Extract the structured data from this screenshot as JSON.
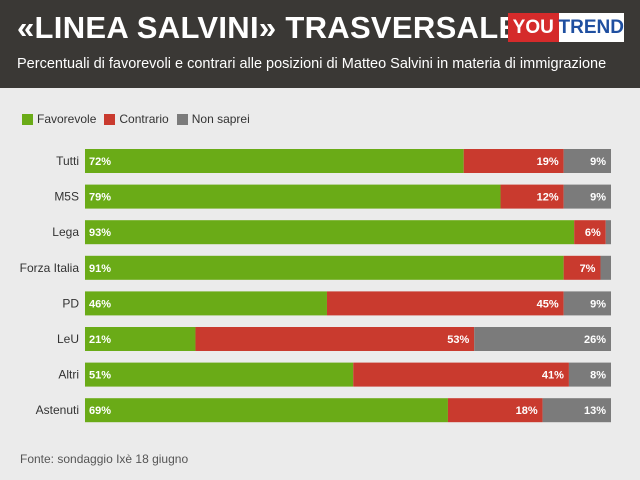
{
  "header": {
    "title": "«LINEA SALVINI» TRASVERSALE",
    "subtitle": "Percentuali di favorevoli e contrari alle posizioni di Matteo Salvini in materia di immigrazione",
    "logo_you": "YOU",
    "logo_trend": "TREND"
  },
  "footer": {
    "source": "Fonte: sondaggio Ixè 18 giugno"
  },
  "colors": {
    "favorevole": "#6aab17",
    "contrario": "#c93a2e",
    "non_saprei": "#7b7b7b",
    "header_bg": "#3a3835"
  },
  "chart_data": {
    "type": "bar",
    "orientation": "horizontal",
    "stacked": true,
    "categories": [
      "Tutti",
      "M5S",
      "Lega",
      "Forza Italia",
      "PD",
      "LeU",
      "Altri",
      "Astenuti"
    ],
    "series": [
      {
        "name": "Favorevole",
        "values": [
          72,
          79,
          93,
          91,
          46,
          21,
          51,
          69
        ],
        "labels": [
          "72%",
          "79%",
          "93%",
          "91%",
          "46%",
          "21%",
          "51%",
          "69%"
        ]
      },
      {
        "name": "Contrario",
        "values": [
          19,
          12,
          6,
          7,
          45,
          53,
          41,
          18
        ],
        "labels": [
          "19%",
          "12%",
          "6%",
          "7%",
          "45%",
          "53%",
          "41%",
          "18%"
        ]
      },
      {
        "name": "Non saprei",
        "values": [
          9,
          9,
          1,
          2,
          9,
          26,
          8,
          13
        ],
        "labels": [
          "9%",
          "9%",
          "",
          "",
          "9%",
          "26%",
          "8%",
          "13%"
        ]
      }
    ],
    "xlim": [
      0,
      100
    ],
    "legend": "top-left",
    "grid": false
  }
}
